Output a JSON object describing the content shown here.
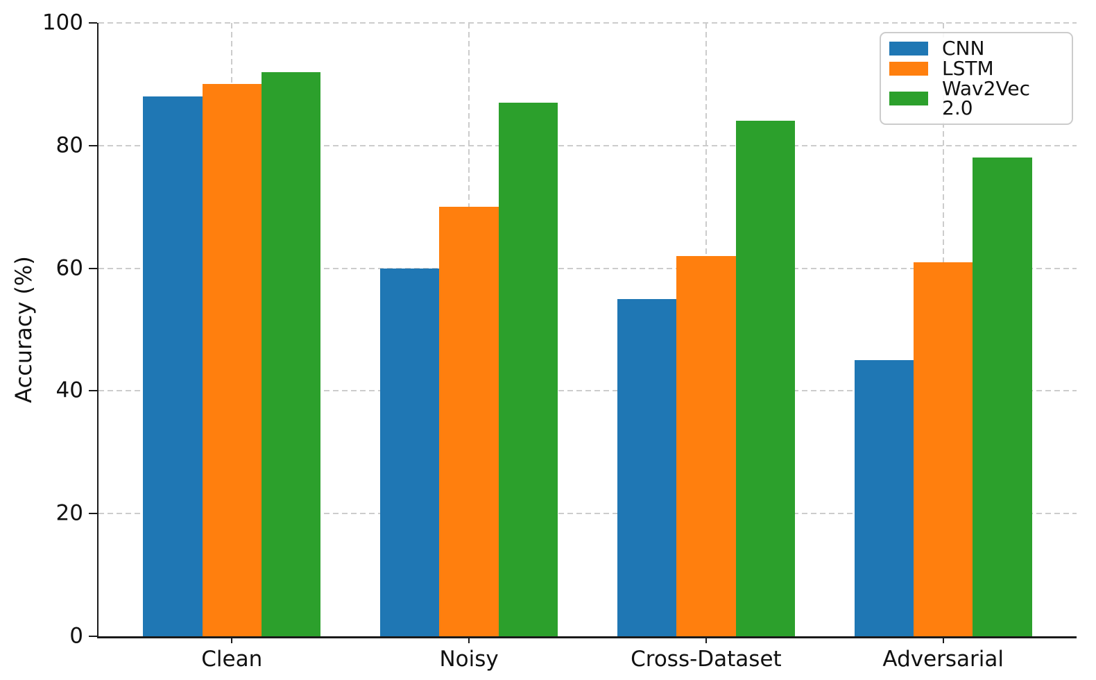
{
  "chart_data": {
    "type": "bar",
    "title": "",
    "categories": [
      "Clean",
      "Noisy",
      "Cross-Dataset",
      "Adversarial"
    ],
    "series": [
      {
        "name": "CNN",
        "color": "#1f77b4",
        "values": [
          88,
          60,
          55,
          45
        ]
      },
      {
        "name": "LSTM",
        "color": "#ff7f0e",
        "values": [
          90,
          70,
          62,
          61
        ]
      },
      {
        "name": "Wav2Vec 2.0",
        "color": "#2ca02c",
        "values": [
          92,
          87,
          84,
          78
        ]
      }
    ],
    "xlabel": "",
    "ylabel": "Accuracy (%)",
    "ylim": [
      0,
      100
    ],
    "yticks": [
      0,
      20,
      40,
      60,
      80,
      100
    ],
    "grid": {
      "style": "dashed",
      "color": "#cccccc",
      "horizontal": true,
      "vertical": true
    },
    "legend": {
      "position": "upper right"
    },
    "background": "#ffffff",
    "axis_color": "#1a1a1a"
  }
}
